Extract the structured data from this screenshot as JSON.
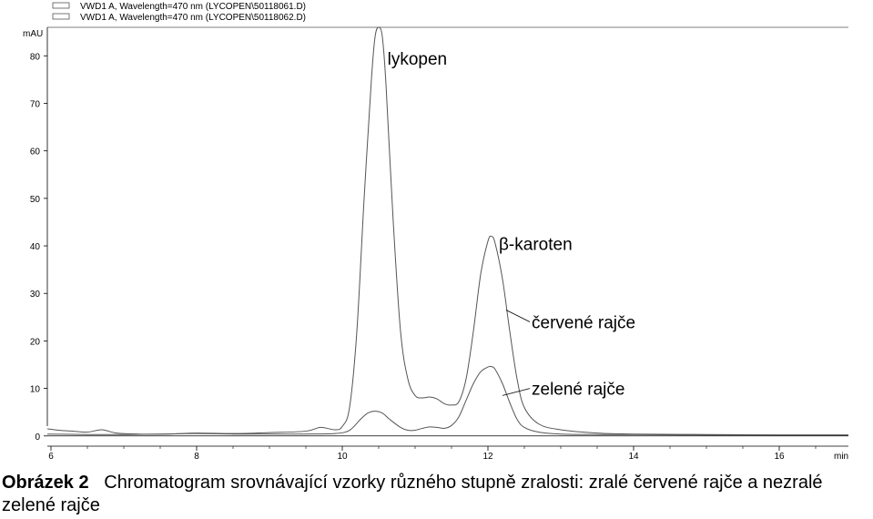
{
  "chart_data": {
    "type": "line",
    "ylabel": "mAU",
    "xlabel": "min",
    "xlim": [
      5.95,
      16.95
    ],
    "ylim": [
      -1,
      86
    ],
    "xticks": [
      6,
      8,
      10,
      12,
      14,
      16
    ],
    "yticks": [
      0,
      10,
      20,
      30,
      40,
      50,
      60,
      70,
      80
    ],
    "grid": false,
    "legend_position": "top-left",
    "legend": [
      "VWD1 A, Wavelength=470 nm (LYCOPEN\\50118061.D)",
      "VWD1 A, Wavelength=470 nm (LYCOPEN\\50118062.D)"
    ],
    "series": [
      {
        "name": "VWD1 A, Wavelength=470 nm (LYCOPEN\\50118061.D)",
        "x": [
          5.95,
          6.1,
          6.3,
          6.5,
          6.7,
          6.9,
          7.2,
          7.6,
          8.0,
          8.5,
          9.0,
          9.5,
          9.7,
          9.9,
          10.0,
          10.1,
          10.2,
          10.3,
          10.4,
          10.45,
          10.5,
          10.55,
          10.6,
          10.7,
          10.8,
          10.9,
          11.0,
          11.1,
          11.2,
          11.3,
          11.4,
          11.5,
          11.6,
          11.7,
          11.8,
          11.9,
          12.0,
          12.05,
          12.1,
          12.2,
          12.3,
          12.4,
          12.5,
          12.7,
          13.0,
          13.5,
          14.0,
          15.0,
          16.0,
          16.95
        ],
        "y": [
          1.5,
          1.2,
          1.0,
          0.8,
          1.3,
          0.6,
          0.4,
          0.4,
          0.6,
          0.5,
          0.7,
          1.0,
          1.8,
          1.3,
          2.0,
          6.0,
          22.0,
          50.0,
          75.0,
          84.0,
          86.0,
          84.0,
          74.0,
          45.0,
          22.0,
          12.0,
          8.5,
          8.0,
          8.2,
          7.8,
          6.8,
          6.5,
          7.2,
          12.0,
          22.0,
          34.0,
          41.0,
          42.0,
          40.5,
          33.0,
          22.0,
          12.0,
          6.0,
          2.5,
          1.3,
          0.6,
          0.4,
          0.3,
          0.2,
          0.2
        ],
        "color": "#555555"
      },
      {
        "name": "VWD1 A, Wavelength=470 nm (LYCOPEN\\50118062.D)",
        "x": [
          5.95,
          6.5,
          7.0,
          7.5,
          8.0,
          8.5,
          9.0,
          9.5,
          9.9,
          10.1,
          10.25,
          10.35,
          10.45,
          10.55,
          10.65,
          10.8,
          10.9,
          11.0,
          11.1,
          11.2,
          11.3,
          11.4,
          11.5,
          11.6,
          11.7,
          11.8,
          11.9,
          12.0,
          12.05,
          12.1,
          12.2,
          12.3,
          12.4,
          12.5,
          12.7,
          13.0,
          13.5,
          14.0,
          15.0,
          16.0,
          16.95
        ],
        "y": [
          0.4,
          0.3,
          0.3,
          0.4,
          0.5,
          0.4,
          0.4,
          0.4,
          0.5,
          1.2,
          3.5,
          4.8,
          5.2,
          4.8,
          3.5,
          1.8,
          1.2,
          1.2,
          1.6,
          1.9,
          1.8,
          1.6,
          2.2,
          4.0,
          7.5,
          11.0,
          13.5,
          14.5,
          14.6,
          14.0,
          11.0,
          7.0,
          3.5,
          1.8,
          0.8,
          0.4,
          0.3,
          0.3,
          0.2,
          0.2,
          0.2
        ],
        "color": "#555555"
      }
    ],
    "annotations": [
      {
        "text": "lykopen",
        "x": 10.62,
        "y": 79.5
      },
      {
        "text": "β-karoten",
        "x": 12.15,
        "y": 40.5
      },
      {
        "text": "červené rajče",
        "x": 12.6,
        "y": 24.0,
        "pointer": {
          "x": 12.25,
          "y": 26.5
        }
      },
      {
        "text": "zelené rajče",
        "x": 12.6,
        "y": 10.0,
        "pointer": {
          "x": 12.2,
          "y": 8.5
        }
      }
    ]
  },
  "caption": {
    "label": "Obrázek 2",
    "text": "Chromatogram srovnávající vzorky různého stupně zralosti: zralé červené rajče a nezralé zelené rajče"
  }
}
